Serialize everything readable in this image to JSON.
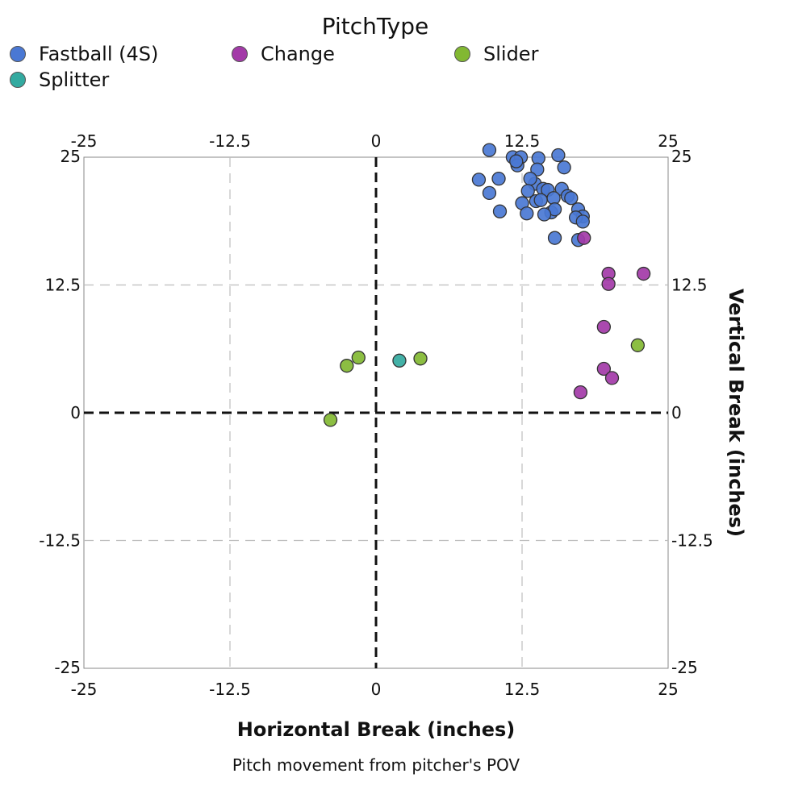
{
  "chart_data": {
    "type": "scatter",
    "title": "Pitch movement from pitcher's POV",
    "xlabel": "Horizontal Break (inches)",
    "ylabel": "Vertical Break (inches)",
    "xlim": [
      -25,
      25
    ],
    "ylim": [
      -25,
      25
    ],
    "ticks": [
      -25,
      -12.5,
      0,
      12.5,
      25
    ],
    "tick_labels": [
      "-25",
      "-12.5",
      "0",
      "12.5",
      "25"
    ],
    "grid": true,
    "legend": {
      "title": "PitchType",
      "placement": "top",
      "entries": [
        "Fastball (4S)",
        "Change",
        "Slider",
        "Splitter"
      ]
    },
    "series": [
      {
        "name": "Fastball (4S)",
        "color": "#4a78d4",
        "points": [
          [
            9.7,
            25.7
          ],
          [
            11.7,
            25.0
          ],
          [
            12.4,
            25.0
          ],
          [
            13.9,
            24.9
          ],
          [
            15.6,
            25.2
          ],
          [
            12.1,
            24.2
          ],
          [
            12.0,
            24.6
          ],
          [
            13.8,
            23.8
          ],
          [
            16.1,
            24.0
          ],
          [
            8.8,
            22.8
          ],
          [
            10.5,
            22.9
          ],
          [
            13.6,
            22.4
          ],
          [
            13.2,
            22.9
          ],
          [
            14.3,
            21.9
          ],
          [
            13.0,
            21.7
          ],
          [
            14.7,
            21.8
          ],
          [
            15.9,
            21.9
          ],
          [
            9.7,
            21.5
          ],
          [
            16.4,
            21.2
          ],
          [
            13.7,
            20.7
          ],
          [
            14.1,
            20.8
          ],
          [
            15.2,
            21.0
          ],
          [
            16.7,
            21.0
          ],
          [
            12.5,
            20.5
          ],
          [
            15.0,
            19.6
          ],
          [
            15.3,
            19.9
          ],
          [
            17.3,
            19.9
          ],
          [
            10.6,
            19.7
          ],
          [
            12.9,
            19.5
          ],
          [
            14.4,
            19.4
          ],
          [
            17.7,
            19.2
          ],
          [
            17.1,
            19.1
          ],
          [
            17.7,
            18.7
          ],
          [
            15.3,
            17.1
          ],
          [
            17.3,
            16.9
          ]
        ]
      },
      {
        "name": "Change",
        "color": "#a33aa8",
        "points": [
          [
            17.8,
            17.1
          ],
          [
            19.9,
            13.6
          ],
          [
            19.9,
            12.6
          ],
          [
            22.9,
            13.6
          ],
          [
            19.5,
            8.4
          ],
          [
            19.5,
            4.3
          ],
          [
            20.2,
            3.4
          ],
          [
            17.5,
            2.0
          ]
        ]
      },
      {
        "name": "Slider",
        "color": "#82b832",
        "points": [
          [
            -1.5,
            5.4
          ],
          [
            -2.5,
            4.6
          ],
          [
            3.8,
            5.3
          ],
          [
            22.4,
            6.6
          ],
          [
            -3.9,
            -0.7
          ]
        ]
      },
      {
        "name": "Splitter",
        "color": "#33aaa0",
        "points": [
          [
            2.0,
            5.1
          ]
        ]
      }
    ]
  }
}
